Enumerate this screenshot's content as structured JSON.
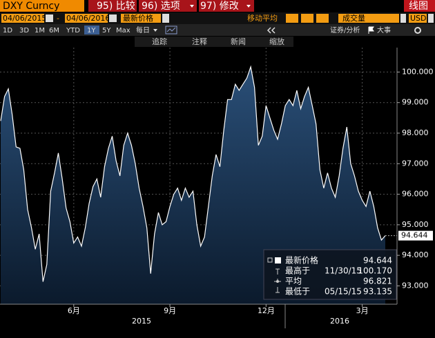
{
  "toolbar": {
    "ticker": "DXY Curncy",
    "buttons": [
      "95) 比较",
      "96) 选项",
      "97) 修改"
    ],
    "chart_kind": "线图"
  },
  "controls": {
    "start_date": "04/06/2015",
    "date_separator": "-",
    "end_date": "04/06/2016",
    "price_field": "最新价格",
    "moving_average": "移动平均",
    "volume": "成交量",
    "currency": "USD"
  },
  "periods": [
    "1D",
    "3D",
    "1M",
    "6M",
    "YTD",
    "1Y",
    "5Y",
    "Max"
  ],
  "frequency": "每日",
  "tools_right": [
    "证券/分析",
    "大事"
  ],
  "chart_tools": [
    "追踪",
    "注释",
    "新闻",
    "缩放"
  ],
  "chart_data": {
    "type": "area",
    "color": "#ffffff",
    "grid": true,
    "categories": [
      null,
      null,
      null,
      null,
      null,
      null,
      null,
      null,
      null,
      null,
      null,
      null,
      null,
      null,
      null,
      null,
      null,
      null,
      null,
      "6月",
      null,
      null,
      null,
      null,
      null,
      null,
      null,
      null,
      null,
      null,
      null,
      null,
      null,
      null,
      null,
      null,
      null,
      null,
      null,
      null,
      null,
      null,
      null,
      null,
      "9月",
      null,
      null,
      null,
      null,
      null,
      null,
      null,
      null,
      null,
      null,
      null,
      null,
      null,
      null,
      null,
      null,
      null,
      null,
      null,
      null,
      null,
      null,
      null,
      null,
      "12月",
      null,
      null,
      null,
      null,
      null,
      null,
      null,
      null,
      null,
      null,
      null,
      null,
      null,
      null,
      null,
      null,
      null,
      null,
      null,
      null,
      null,
      null,
      null,
      null,
      "3月",
      null,
      null,
      null,
      null,
      null,
      null
    ],
    "x_group_labels": [
      "2015",
      "2016"
    ],
    "values": [
      98.4,
      99.2,
      99.45,
      98.6,
      97.55,
      97.5,
      96.8,
      95.5,
      94.9,
      94.2,
      94.7,
      93.135,
      93.7,
      96.1,
      96.7,
      97.35,
      96.5,
      95.55,
      95.1,
      94.4,
      94.6,
      94.3,
      94.9,
      95.7,
      96.25,
      96.5,
      95.9,
      96.9,
      97.5,
      97.9,
      97.1,
      96.6,
      97.6,
      98.0,
      97.6,
      97.0,
      96.2,
      95.6,
      94.9,
      93.4,
      94.7,
      95.4,
      95.0,
      95.1,
      95.6,
      96.0,
      96.2,
      95.8,
      96.2,
      95.9,
      96.1,
      95.0,
      94.3,
      94.6,
      95.6,
      96.6,
      97.3,
      96.9,
      98.1,
      99.1,
      99.1,
      99.6,
      99.4,
      99.6,
      99.8,
      100.17,
      99.5,
      97.6,
      97.9,
      98.9,
      98.5,
      98.1,
      97.8,
      98.3,
      98.9,
      99.1,
      98.9,
      99.4,
      98.8,
      99.2,
      99.5,
      98.9,
      98.3,
      96.8,
      96.2,
      96.7,
      96.2,
      95.9,
      96.6,
      97.5,
      98.2,
      97.0,
      96.6,
      96.1,
      95.8,
      95.6,
      96.1,
      95.6,
      94.9,
      94.5,
      94.644
    ],
    "ylim": [
      92.4,
      100.8
    ],
    "yticks": [
      {
        "value": 93,
        "label": "93.000"
      },
      {
        "value": 94,
        "label": "94.000"
      },
      {
        "value": 95,
        "label": "95.000"
      },
      {
        "value": 96,
        "label": "96.000"
      },
      {
        "value": 97,
        "label": "97.000"
      },
      {
        "value": 98,
        "label": "98.000"
      },
      {
        "value": 99,
        "label": "99.000"
      },
      {
        "value": 100,
        "label": "100.000"
      }
    ],
    "stats": [
      {
        "label": "最新价格",
        "value": "94.644"
      },
      {
        "label": "最高于",
        "date": "11/30/15",
        "value": "100.170"
      },
      {
        "label": "平均",
        "value": "96.821"
      },
      {
        "label": "最低于",
        "date": "05/15/15",
        "value": "93.135"
      }
    ]
  }
}
